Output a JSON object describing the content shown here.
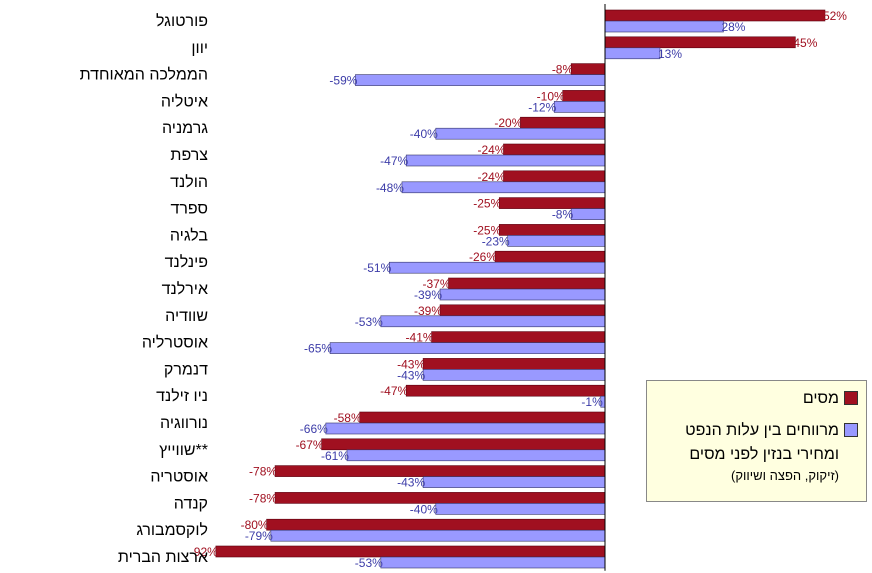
{
  "chart_data": {
    "type": "bar",
    "orientation": "horizontal",
    "categories": [
      "פורטוגל",
      "יוון",
      "הממלכה המאוחדת",
      "איטליה",
      "גרמניה",
      "צרפת",
      "הולנד",
      "ספרד",
      "בלגיה",
      "פינלנד",
      "אירלנד",
      "שוודיה",
      "אוסטרליה",
      "דנמרק",
      "ניו זילנד",
      "נורווגיה",
      "שווייץ**",
      "אוסטריה",
      "קנדה",
      "לוקסמבורג",
      "ארצות הברית"
    ],
    "series": [
      {
        "name": "מסים",
        "color": "#a01020",
        "values": [
          52,
          45,
          -8,
          -10,
          -20,
          -24,
          -24,
          -25,
          -25,
          -26,
          -37,
          -39,
          -41,
          -43,
          -47,
          -58,
          -67,
          -78,
          -78,
          -80,
          -92
        ],
        "labels": [
          "52%",
          "45%",
          "-8%",
          "-10%",
          "-20%",
          "-24%",
          "-24%",
          "-25%",
          "-25%",
          "-26%",
          "-37%",
          "-39%",
          "-41%",
          "-43%",
          "-47%",
          "-58%",
          "-67%",
          "-78%",
          "-78%",
          "-80%",
          "-92%"
        ]
      },
      {
        "name": "מרווחים בין עלות הנפט ומחירי בנזין לפני מסים",
        "color": "#9999ff",
        "values": [
          28,
          13,
          -59,
          -12,
          -40,
          -47,
          -48,
          -8,
          -23,
          -51,
          -39,
          -53,
          -65,
          -43,
          -1,
          -66,
          -61,
          -43,
          -40,
          -79,
          -53
        ],
        "labels": [
          "28%",
          "13%",
          "-59%",
          "-12%",
          "-40%",
          "-47%",
          "-48%",
          "-8%",
          "-23%",
          "-51%",
          "-39%",
          "-53%",
          "-65%",
          "-43%",
          "-1%",
          "-66%",
          "-61%",
          "-43%",
          "-40%",
          "-79%",
          "-53%"
        ]
      }
    ],
    "legend": {
      "position": "bottom-right",
      "items": [
        {
          "text": "מסים"
        },
        {
          "text": "מרווחים בין עלות הנפט ומחירי בנזין לפני מסים",
          "note": "(זיקוק, הפצה ושיווק)"
        }
      ]
    },
    "xlim": [
      -100,
      60
    ]
  }
}
